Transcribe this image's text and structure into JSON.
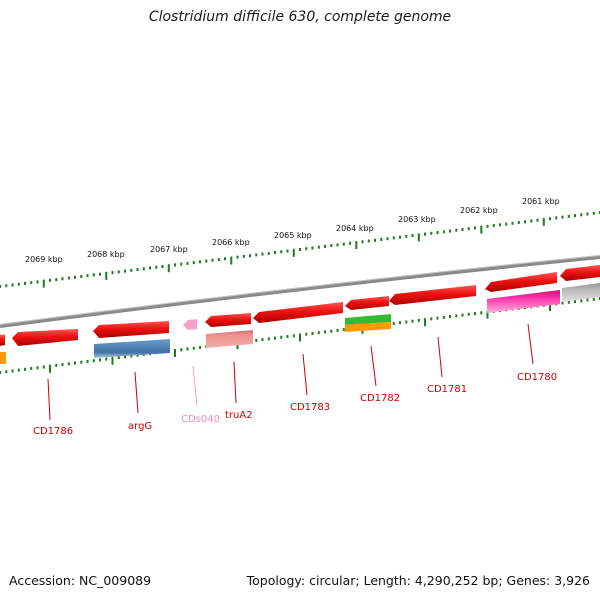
{
  "title": "Clostridium difficile 630, complete genome",
  "accession": "Accession: NC_009089",
  "summary": "Topology: circular; Length: 4,290,252 bp; Genes: 3,926",
  "kbp_labels": [
    "2069 kbp",
    "2068 kbp",
    "2067 kbp",
    "2066 kbp",
    "2065 kbp",
    "2064 kbp",
    "2063 kbp",
    "2062 kbp",
    "2061 kbp"
  ],
  "gene_labels": [
    {
      "text": "CD1786",
      "color": "#cc0000"
    },
    {
      "text": "argG",
      "color": "#cc0000"
    },
    {
      "text": "CDs040",
      "color": "#f08cc0"
    },
    {
      "text": "truA2",
      "color": "#cc0000"
    },
    {
      "text": "CD1783",
      "color": "#cc0000"
    },
    {
      "text": "CD1782",
      "color": "#cc0000"
    },
    {
      "text": "CD1781",
      "color": "#cc0000"
    },
    {
      "text": "CD1780",
      "color": "#cc0000"
    }
  ],
  "colors": {
    "backbone": "#777777",
    "tick": "#1e7a1e",
    "gene_red": "#ee1111",
    "blue": "#4a7fb0",
    "salmon": "#ee8888",
    "green": "#33bb33",
    "orange": "#ff9900",
    "magenta": "#ff22aa",
    "grey": "#bbbbbb",
    "pink_small": "#f5a0cc"
  }
}
